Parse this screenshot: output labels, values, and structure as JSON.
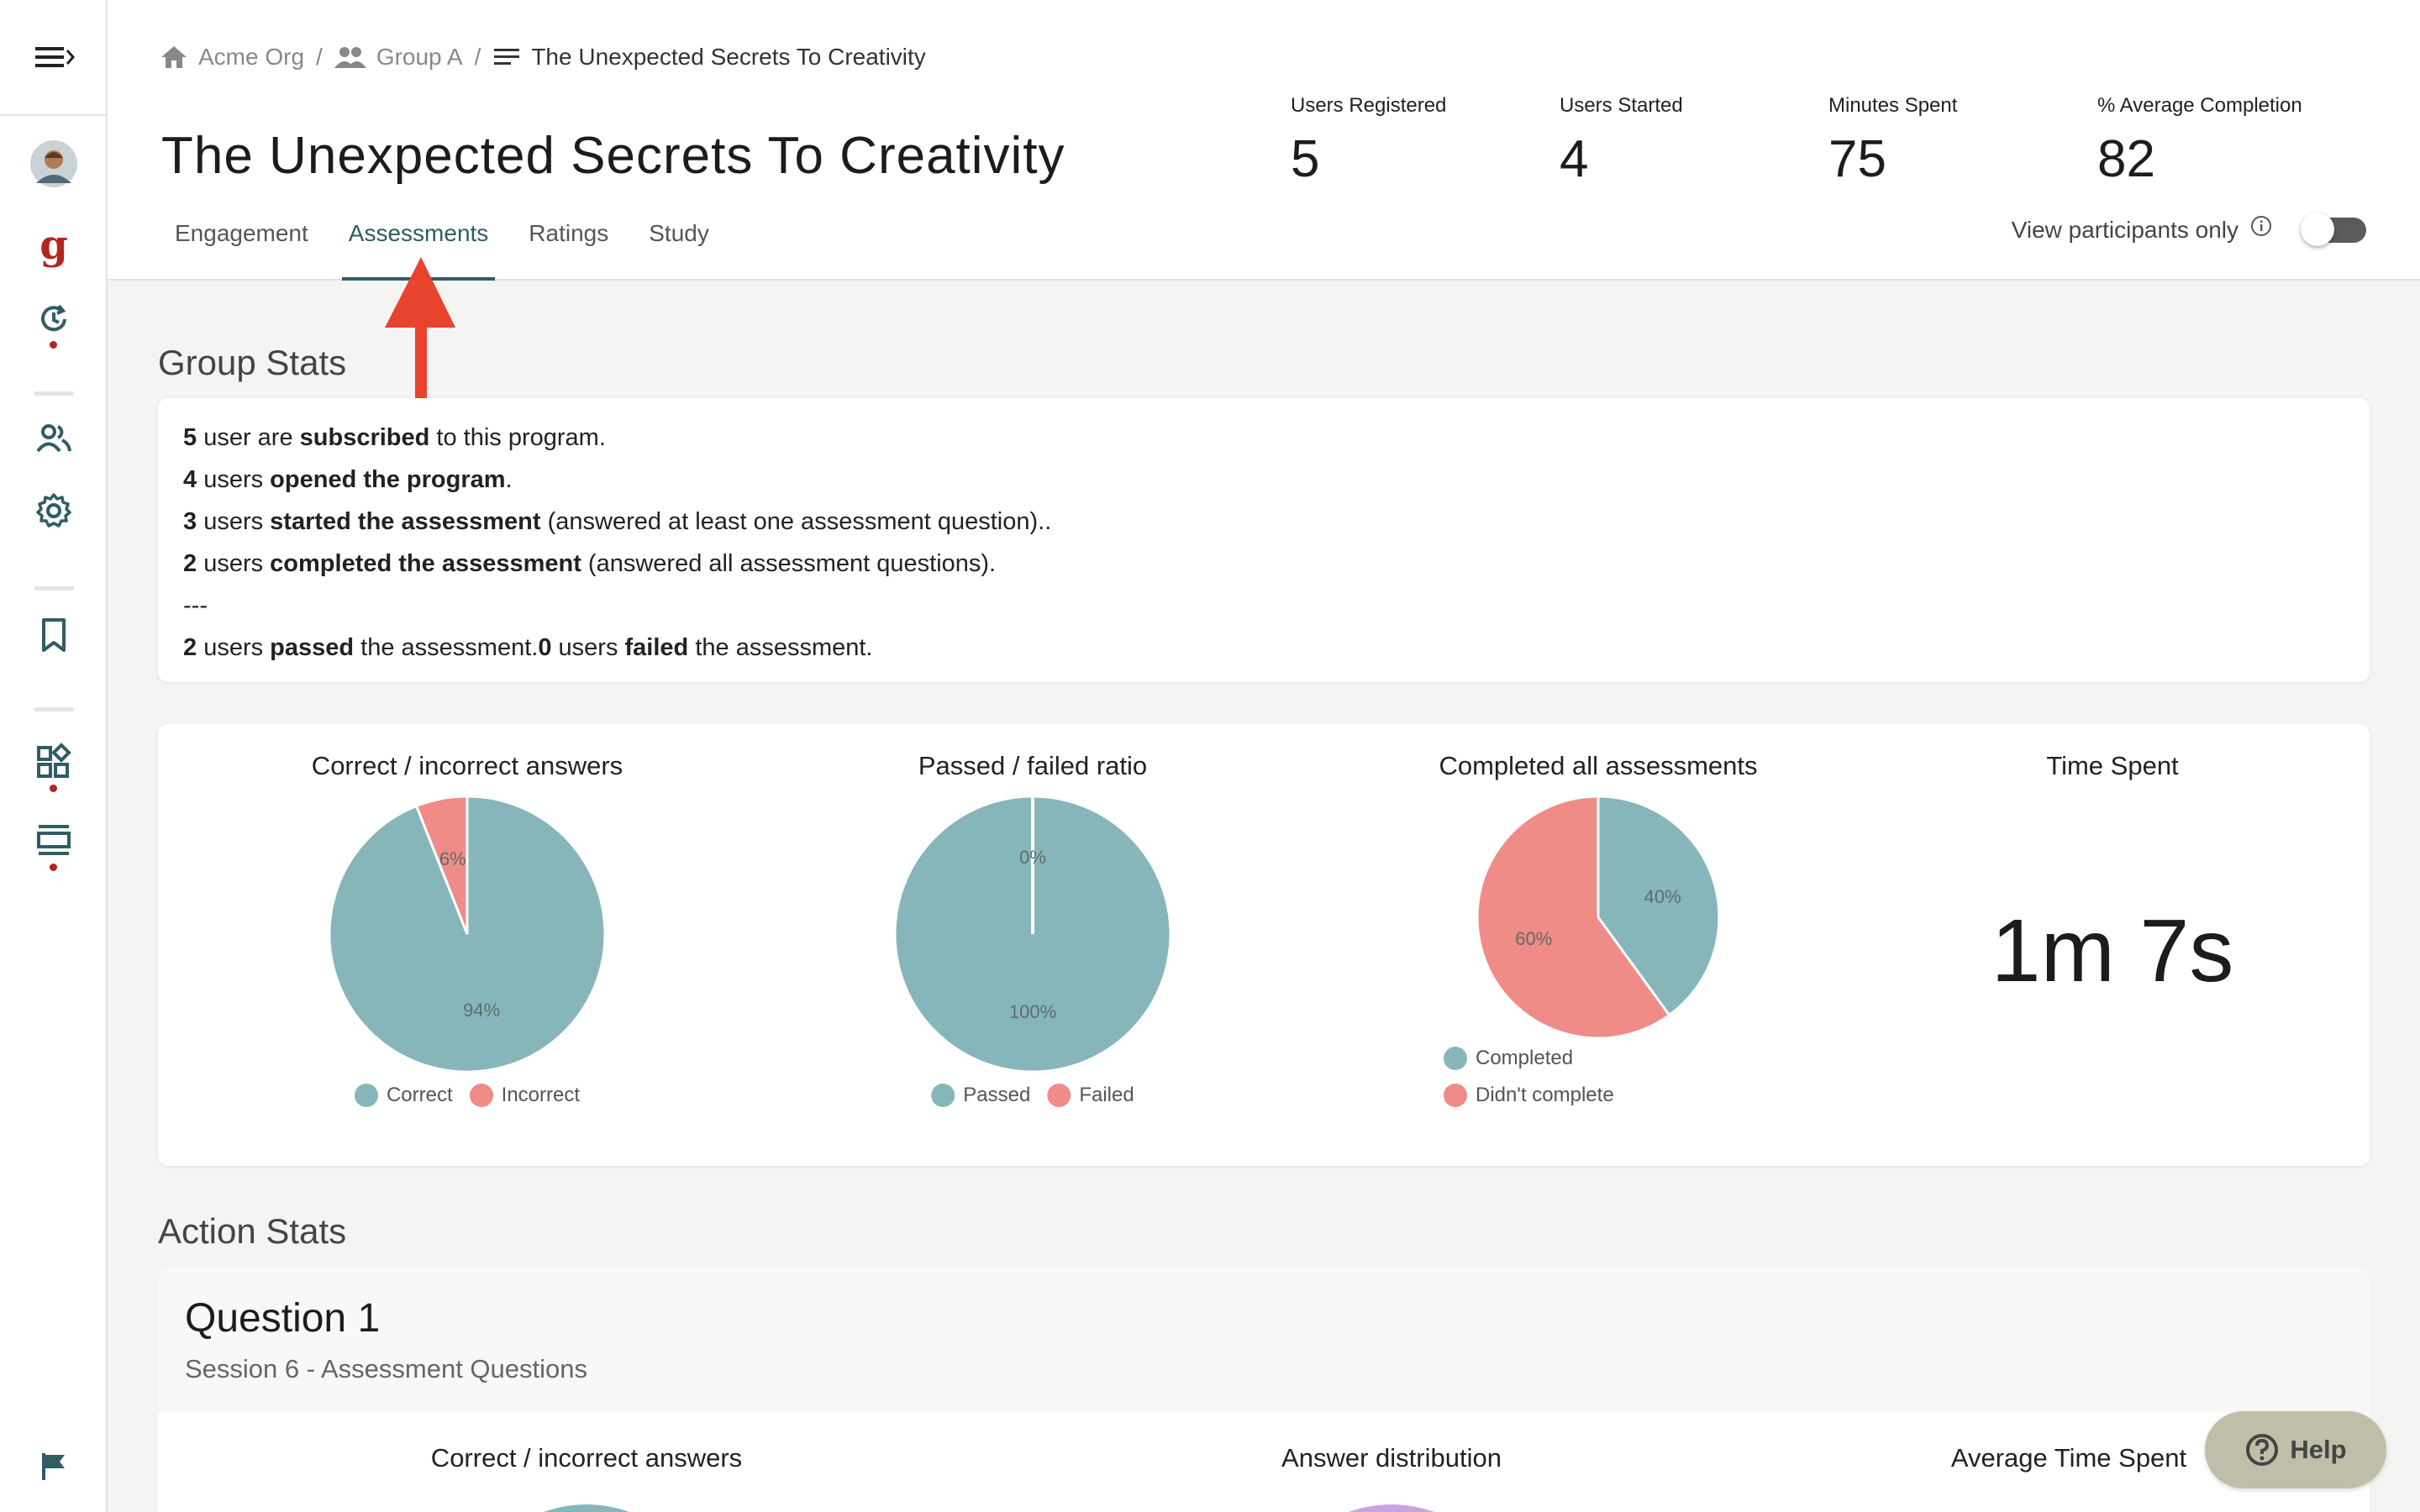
{
  "breadcrumb": {
    "items": [
      {
        "label": "Acme Org",
        "icon": "home-icon"
      },
      {
        "label": "Group A",
        "icon": "group-icon"
      },
      {
        "label": "The Unexpected Secrets To Creativity",
        "icon": "list-icon"
      }
    ],
    "separator": "/"
  },
  "page_title": "The Unexpected Secrets To Creativity",
  "header_stats": [
    {
      "label": "Users Registered",
      "value": "5"
    },
    {
      "label": "Users Started",
      "value": "4"
    },
    {
      "label": "Minutes Spent",
      "value": "75"
    },
    {
      "label": "% Average Completion",
      "value": "82"
    }
  ],
  "tabs": [
    {
      "label": "Engagement",
      "active": false
    },
    {
      "label": "Assessments",
      "active": true
    },
    {
      "label": "Ratings",
      "active": false
    },
    {
      "label": "Study",
      "active": false
    }
  ],
  "view_participants": {
    "label": "View participants only",
    "enabled": false
  },
  "group_stats": {
    "title": "Group Stats",
    "line1": {
      "n": "5",
      "a": " user are ",
      "b": "subscribed",
      "c": " to this program."
    },
    "line2": {
      "n": "4",
      "a": " users ",
      "b": "opened the program",
      "c": "."
    },
    "line3": {
      "n": "3",
      "a": " users ",
      "b": "started the assessment",
      "c": " (answered at least one assessment question).."
    },
    "line4": {
      "n": "2",
      "a": " users ",
      "b": "completed the assessment",
      "c": " (answered all assessment questions)."
    },
    "divider": "---",
    "line6": {
      "n1": "2",
      "a": " users ",
      "b": "passed",
      "c": " the assessment.",
      "n2": "0",
      "d": " users ",
      "e": "failed",
      "f": " the assessment."
    }
  },
  "chart_data": [
    {
      "type": "pie",
      "title": "Correct / incorrect answers",
      "labels": [
        "Correct",
        "Incorrect"
      ],
      "values": [
        94,
        6
      ],
      "value_labels": [
        "94%",
        "6%"
      ],
      "colors": [
        "#86b6ba",
        "#ef8c87"
      ],
      "legend": "bottom"
    },
    {
      "type": "pie",
      "title": "Passed / failed ratio",
      "labels": [
        "Passed",
        "Failed"
      ],
      "values": [
        100,
        0
      ],
      "value_labels": [
        "100%",
        "0%"
      ],
      "colors": [
        "#86b6ba",
        "#ef8c87"
      ],
      "legend": "bottom"
    },
    {
      "type": "pie",
      "title": "Completed all assessments",
      "labels": [
        "Completed",
        "Didn't complete"
      ],
      "values": [
        40,
        60
      ],
      "value_labels": [
        "40%",
        "60%"
      ],
      "colors": [
        "#86b6ba",
        "#ef8c87"
      ],
      "legend": "bottom"
    }
  ],
  "time_spent": {
    "title": "Time Spent",
    "value": "1m 7s"
  },
  "action_stats": {
    "title": "Action Stats",
    "question": {
      "title": "Question 1",
      "subtitle": "Session 6 - Assessment Questions",
      "chart_titles": [
        "Correct / incorrect answers",
        "Answer distribution",
        "Average Time Spent"
      ]
    }
  },
  "help": {
    "label": "Help"
  },
  "colors": {
    "accent": "#2e5d63",
    "correct": "#86b6ba",
    "incorrect": "#ef8c87",
    "alert": "#b3261e",
    "arrow": "#e8432c"
  }
}
